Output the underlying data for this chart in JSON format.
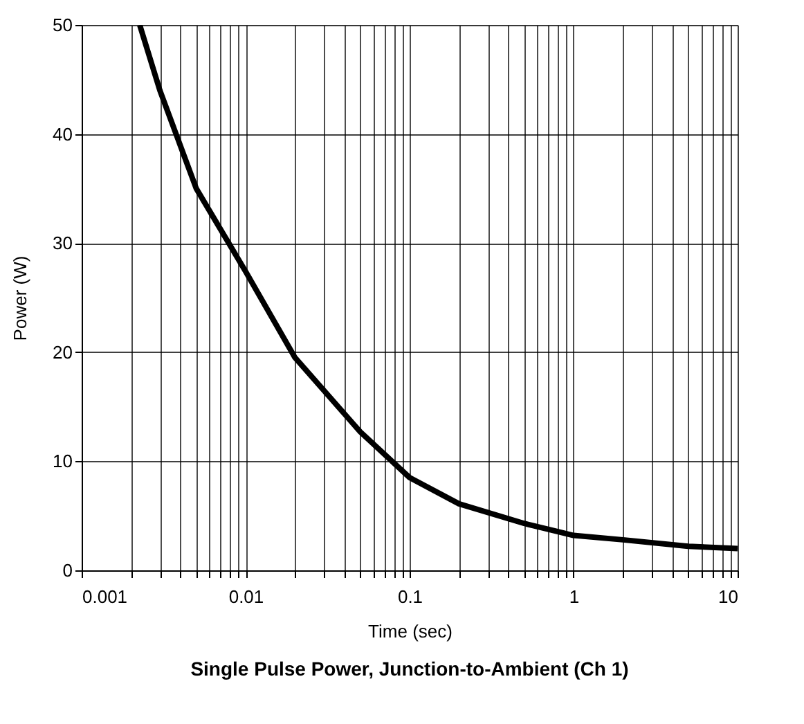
{
  "chart_data": {
    "type": "line",
    "title": "Single Pulse Power, Junction-to-Ambient (Ch 1)",
    "xlabel": "Time (sec)",
    "ylabel": "Power (W)",
    "x": [
      0.00226,
      0.003,
      0.005,
      0.01,
      0.02,
      0.05,
      0.1,
      0.2,
      0.5,
      1,
      2,
      5,
      10
    ],
    "series": [
      {
        "color": "#000000",
        "values": [
          50,
          44,
          35,
          27.4,
          19.5,
          12.7,
          8.5,
          6.1,
          4.3,
          3.2,
          2.8,
          2.2,
          2.0
        ]
      }
    ],
    "log": "x",
    "xlim": [
      0.001,
      10
    ],
    "ylim": [
      0,
      50
    ],
    "xticks": [
      {
        "value": 0.001,
        "label": "0.001"
      },
      {
        "value": 0.002,
        "label": null
      },
      {
        "value": 0.003,
        "label": null
      },
      {
        "value": 0.004,
        "label": null
      },
      {
        "value": 0.005,
        "label": null
      },
      {
        "value": 0.006,
        "label": null
      },
      {
        "value": 0.007,
        "label": null
      },
      {
        "value": 0.008,
        "label": null
      },
      {
        "value": 0.009,
        "label": null
      },
      {
        "value": 0.01,
        "label": "0.01"
      },
      {
        "value": 0.02,
        "label": null
      },
      {
        "value": 0.03,
        "label": null
      },
      {
        "value": 0.04,
        "label": null
      },
      {
        "value": 0.05,
        "label": null
      },
      {
        "value": 0.06,
        "label": null
      },
      {
        "value": 0.07,
        "label": null
      },
      {
        "value": 0.08,
        "label": null
      },
      {
        "value": 0.09,
        "label": null
      },
      {
        "value": 0.1,
        "label": "0.1"
      },
      {
        "value": 0.2,
        "label": null
      },
      {
        "value": 0.3,
        "label": null
      },
      {
        "value": 0.4,
        "label": null
      },
      {
        "value": 0.5,
        "label": null
      },
      {
        "value": 0.6,
        "label": null
      },
      {
        "value": 0.7,
        "label": null
      },
      {
        "value": 0.8,
        "label": null
      },
      {
        "value": 0.9,
        "label": null
      },
      1,
      {
        "value": 2,
        "label": null
      },
      {
        "value": 3,
        "label": null
      },
      {
        "value": 4,
        "label": null
      },
      {
        "value": 5,
        "label": null
      },
      {
        "value": 6,
        "label": null
      },
      {
        "value": 7,
        "label": null
      },
      {
        "value": 8,
        "label": null
      },
      {
        "value": 9,
        "label": null
      },
      10
    ],
    "yticks": [
      0,
      10,
      20,
      30,
      40,
      50
    ],
    "grid": true,
    "marker": "none",
    "line_style": "solid"
  }
}
